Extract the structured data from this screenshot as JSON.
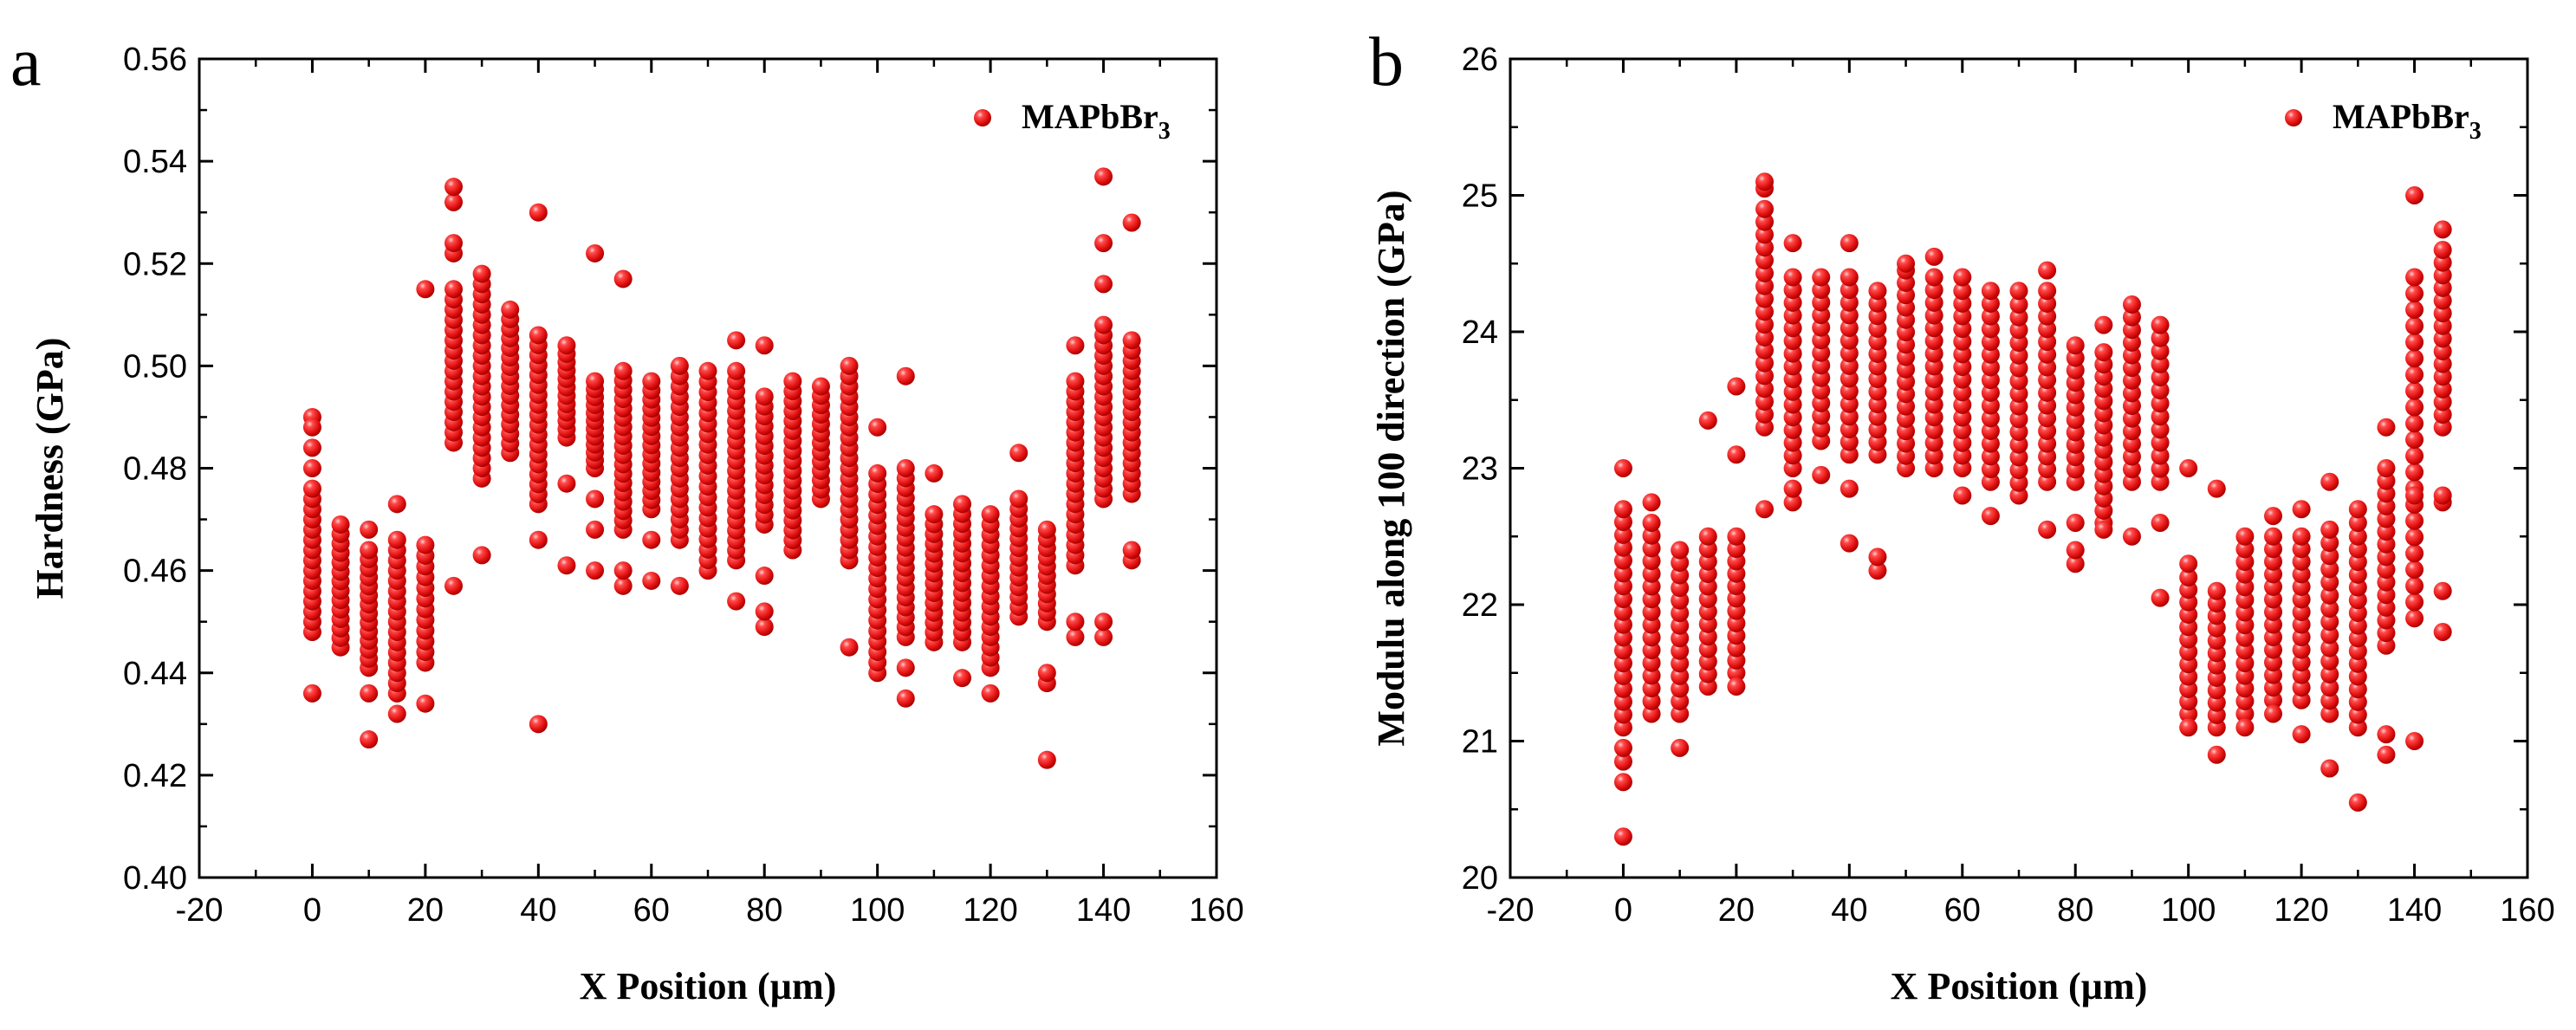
{
  "chart_data": [
    {
      "panel": "a",
      "type": "scatter",
      "xlabel": "X Position (µm)",
      "ylabel": "Hardness (GPa)",
      "xlim": [
        -20,
        160
      ],
      "ylim": [
        0.4,
        0.56
      ],
      "xticks": [
        "-20",
        "0",
        "20",
        "40",
        "60",
        "80",
        "100",
        "120",
        "140",
        "160"
      ],
      "yticks": [
        "0.40",
        "0.42",
        "0.44",
        "0.46",
        "0.48",
        "0.50",
        "0.52",
        "0.54",
        "0.56"
      ],
      "legend": {
        "position": "top-right",
        "label": "MAPbBr",
        "subscript": "3"
      },
      "color": "#ee1111",
      "series": [
        {
          "name": "MAPbBr3",
          "columns": [
            {
              "x": 0,
              "low": 0.448,
              "high": 0.476,
              "n": 15,
              "extra": [
                0.436,
                0.49,
                0.488,
                0.484,
                0.48
              ]
            },
            {
              "x": 5,
              "low": 0.445,
              "high": 0.469,
              "n": 14,
              "extra": []
            },
            {
              "x": 10,
              "low": 0.441,
              "high": 0.464,
              "n": 14,
              "extra": [
                0.427,
                0.436,
                0.468
              ]
            },
            {
              "x": 15,
              "low": 0.436,
              "high": 0.466,
              "n": 16,
              "extra": [
                0.432,
                0.473
              ]
            },
            {
              "x": 20,
              "low": 0.442,
              "high": 0.465,
              "n": 12,
              "extra": [
                0.434,
                0.515
              ]
            },
            {
              "x": 25,
              "low": 0.485,
              "high": 0.515,
              "n": 16,
              "extra": [
                0.457,
                0.522,
                0.524,
                0.532,
                0.535
              ]
            },
            {
              "x": 30,
              "low": 0.478,
              "high": 0.516,
              "n": 20,
              "extra": [
                0.463,
                0.518
              ]
            },
            {
              "x": 35,
              "low": 0.483,
              "high": 0.511,
              "n": 16,
              "extra": []
            },
            {
              "x": 40,
              "low": 0.473,
              "high": 0.506,
              "n": 18,
              "extra": [
                0.43,
                0.466,
                0.53
              ]
            },
            {
              "x": 45,
              "low": 0.486,
              "high": 0.504,
              "n": 12,
              "extra": [
                0.461,
                0.477
              ]
            },
            {
              "x": 50,
              "low": 0.48,
              "high": 0.497,
              "n": 12,
              "extra": [
                0.46,
                0.468,
                0.474,
                0.522
              ]
            },
            {
              "x": 55,
              "low": 0.468,
              "high": 0.499,
              "n": 18,
              "extra": [
                0.457,
                0.46,
                0.517
              ]
            },
            {
              "x": 60,
              "low": 0.472,
              "high": 0.497,
              "n": 15,
              "extra": [
                0.458,
                0.466
              ]
            },
            {
              "x": 65,
              "low": 0.466,
              "high": 0.5,
              "n": 18,
              "extra": [
                0.457
              ]
            },
            {
              "x": 70,
              "low": 0.46,
              "high": 0.499,
              "n": 20,
              "extra": []
            },
            {
              "x": 75,
              "low": 0.462,
              "high": 0.499,
              "n": 20,
              "extra": [
                0.454,
                0.505
              ]
            },
            {
              "x": 80,
              "low": 0.469,
              "high": 0.494,
              "n": 14,
              "extra": [
                0.449,
                0.452,
                0.459,
                0.504
              ]
            },
            {
              "x": 85,
              "low": 0.464,
              "high": 0.497,
              "n": 18,
              "extra": []
            },
            {
              "x": 90,
              "low": 0.474,
              "high": 0.496,
              "n": 13,
              "extra": []
            },
            {
              "x": 95,
              "low": 0.462,
              "high": 0.5,
              "n": 20,
              "extra": [
                0.445
              ]
            },
            {
              "x": 100,
              "low": 0.44,
              "high": 0.479,
              "n": 20,
              "extra": [
                0.488
              ]
            },
            {
              "x": 105,
              "low": 0.447,
              "high": 0.48,
              "n": 18,
              "extra": [
                0.435,
                0.441,
                0.498
              ]
            },
            {
              "x": 110,
              "low": 0.446,
              "high": 0.471,
              "n": 14,
              "extra": [
                0.479
              ]
            },
            {
              "x": 115,
              "low": 0.446,
              "high": 0.473,
              "n": 15,
              "extra": [
                0.439
              ]
            },
            {
              "x": 120,
              "low": 0.441,
              "high": 0.471,
              "n": 16,
              "extra": [
                0.436
              ]
            },
            {
              "x": 125,
              "low": 0.451,
              "high": 0.474,
              "n": 13,
              "extra": [
                0.483
              ]
            },
            {
              "x": 130,
              "low": 0.45,
              "high": 0.468,
              "n": 11,
              "extra": [
                0.423,
                0.438,
                0.44
              ]
            },
            {
              "x": 135,
              "low": 0.461,
              "high": 0.497,
              "n": 19,
              "extra": [
                0.447,
                0.45,
                0.504
              ]
            },
            {
              "x": 140,
              "low": 0.474,
              "high": 0.508,
              "n": 18,
              "extra": [
                0.447,
                0.45,
                0.516,
                0.524,
                0.537
              ]
            },
            {
              "x": 145,
              "low": 0.475,
              "high": 0.505,
              "n": 16,
              "extra": [
                0.462,
                0.464,
                0.528
              ]
            }
          ]
        }
      ]
    },
    {
      "panel": "b",
      "type": "scatter",
      "xlabel": "X Position (µm)",
      "ylabel": "Modulu along 100 direction (GPa)",
      "xlim": [
        -20,
        160
      ],
      "ylim": [
        20,
        26
      ],
      "xticks": [
        "-20",
        "0",
        "20",
        "40",
        "60",
        "80",
        "100",
        "120",
        "140",
        "160"
      ],
      "yticks": [
        "20",
        "21",
        "22",
        "23",
        "24",
        "25",
        "26"
      ],
      "legend": {
        "position": "top-right",
        "label": "MAPbBr",
        "subscript": "3"
      },
      "color": "#ee1111",
      "series": [
        {
          "name": "MAPbBr3",
          "columns": [
            {
              "x": 0,
              "low": 21.1,
              "high": 22.7,
              "n": 18,
              "extra": [
                20.3,
                20.7,
                20.85,
                20.95,
                23.0
              ]
            },
            {
              "x": 5,
              "low": 21.2,
              "high": 22.6,
              "n": 16,
              "extra": [
                22.75
              ]
            },
            {
              "x": 10,
              "low": 21.2,
              "high": 22.4,
              "n": 14,
              "extra": [
                20.95
              ]
            },
            {
              "x": 15,
              "low": 21.4,
              "high": 22.5,
              "n": 13,
              "extra": [
                23.35
              ]
            },
            {
              "x": 20,
              "low": 21.5,
              "high": 22.5,
              "n": 12,
              "extra": [
                21.4,
                23.1,
                23.6
              ]
            },
            {
              "x": 25,
              "low": 23.3,
              "high": 24.9,
              "n": 18,
              "extra": [
                22.7,
                25.05,
                25.1
              ]
            },
            {
              "x": 30,
              "low": 23.0,
              "high": 24.4,
              "n": 16,
              "extra": [
                22.75,
                22.85,
                24.65
              ]
            },
            {
              "x": 35,
              "low": 23.2,
              "high": 24.4,
              "n": 14,
              "extra": [
                22.95
              ]
            },
            {
              "x": 40,
              "low": 23.1,
              "high": 24.4,
              "n": 15,
              "extra": [
                22.45,
                22.85,
                24.65
              ]
            },
            {
              "x": 45,
              "low": 23.1,
              "high": 24.3,
              "n": 14,
              "extra": [
                22.25,
                22.35
              ]
            },
            {
              "x": 50,
              "low": 23.0,
              "high": 24.45,
              "n": 17,
              "extra": [
                24.5
              ]
            },
            {
              "x": 55,
              "low": 23.0,
              "high": 24.4,
              "n": 16,
              "extra": [
                24.55
              ]
            },
            {
              "x": 60,
              "low": 23.0,
              "high": 24.3,
              "n": 15,
              "extra": [
                22.8,
                24.4
              ]
            },
            {
              "x": 65,
              "low": 22.9,
              "high": 24.3,
              "n": 16,
              "extra": [
                22.65
              ]
            },
            {
              "x": 70,
              "low": 22.8,
              "high": 24.2,
              "n": 16,
              "extra": [
                24.3
              ]
            },
            {
              "x": 75,
              "low": 22.9,
              "high": 24.3,
              "n": 16,
              "extra": [
                22.55,
                24.45
              ]
            },
            {
              "x": 80,
              "low": 22.9,
              "high": 23.9,
              "n": 12,
              "extra": [
                22.3,
                22.4,
                22.6
              ]
            },
            {
              "x": 85,
              "low": 22.6,
              "high": 23.85,
              "n": 15,
              "extra": [
                22.55,
                24.05
              ]
            },
            {
              "x": 90,
              "low": 22.9,
              "high": 24.2,
              "n": 15,
              "extra": [
                22.5
              ]
            },
            {
              "x": 95,
              "low": 22.9,
              "high": 24.05,
              "n": 13,
              "extra": [
                22.05,
                22.6
              ]
            },
            {
              "x": 100,
              "low": 21.2,
              "high": 22.2,
              "n": 12,
              "extra": [
                21.1,
                22.3,
                23.0
              ]
            },
            {
              "x": 105,
              "low": 21.1,
              "high": 22.1,
              "n": 12,
              "extra": [
                20.9,
                22.85
              ]
            },
            {
              "x": 110,
              "low": 21.2,
              "high": 22.5,
              "n": 15,
              "extra": [
                21.1
              ]
            },
            {
              "x": 115,
              "low": 21.3,
              "high": 22.5,
              "n": 14,
              "extra": [
                21.2,
                22.65
              ]
            },
            {
              "x": 120,
              "low": 21.3,
              "high": 22.5,
              "n": 14,
              "extra": [
                21.05,
                22.7
              ]
            },
            {
              "x": 125,
              "low": 21.2,
              "high": 22.55,
              "n": 15,
              "extra": [
                20.8,
                22.9
              ]
            },
            {
              "x": 130,
              "low": 21.1,
              "high": 22.5,
              "n": 16,
              "extra": [
                20.55,
                22.6,
                22.7
              ]
            },
            {
              "x": 135,
              "low": 21.7,
              "high": 23.0,
              "n": 15,
              "extra": [
                20.9,
                21.05,
                23.3
              ]
            },
            {
              "x": 140,
              "low": 21.9,
              "high": 24.4,
              "n": 22,
              "extra": [
                21.0,
                22.8,
                25.0
              ]
            },
            {
              "x": 145,
              "low": 23.3,
              "high": 24.6,
              "n": 15,
              "extra": [
                21.8,
                22.1,
                22.75,
                22.8,
                24.75
              ]
            }
          ]
        }
      ]
    }
  ]
}
